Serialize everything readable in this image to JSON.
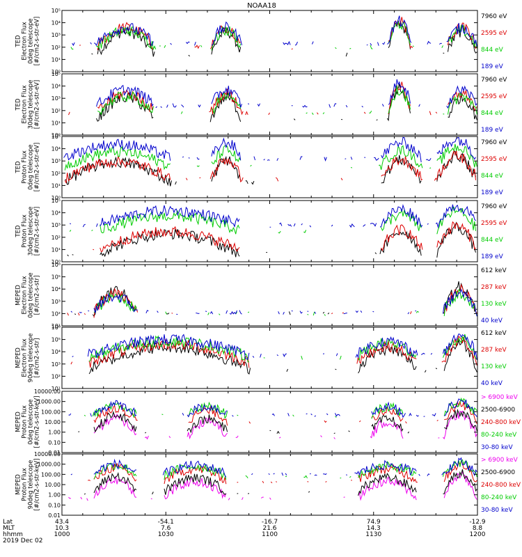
{
  "chart_data": {
    "type": "line",
    "title": "NOAA18",
    "x": {
      "row_labels": [
        "Lat",
        "MLT",
        "hhmm"
      ],
      "ticks": [
        {
          "lat": "43.4",
          "mlt": "10.3",
          "hhmm": "1000"
        },
        {
          "lat": "-54.1",
          "mlt": "7.6",
          "hhmm": "1030"
        },
        {
          "lat": "-16.7",
          "mlt": "21.6",
          "hhmm": "1100"
        },
        {
          "lat": "74.9",
          "mlt": "14.3",
          "hhmm": "1130"
        },
        {
          "lat": "-12.9",
          "mlt": "8.8",
          "hhmm": "1200"
        }
      ],
      "date": "2019 Dec 02",
      "range_minutes": [
        0,
        120
      ]
    },
    "panels": [
      {
        "ylabel": [
          "TED",
          "Electron Flux",
          "0deg telescope",
          "[#/cm2-s-str-eV]"
        ],
        "scale": "log",
        "ylim_exp": [
          0,
          5
        ],
        "ticks": [
          "10⁰",
          "10¹",
          "10²",
          "10³",
          "10⁴",
          "10⁵"
        ],
        "series": [
          {
            "name": "7960 eV",
            "color": "#000000",
            "level": 1.4
          },
          {
            "name": "2595 eV",
            "color": "#dd0000",
            "level": 2.0
          },
          {
            "name": "844 eV",
            "color": "#00cc00",
            "level": 2.0
          },
          {
            "name": "189 eV",
            "color": "#0000cc",
            "level": 2.3
          }
        ],
        "pattern": "ted_e"
      },
      {
        "ylabel": [
          "TED",
          "Electron Flux",
          "30deg telescope",
          "[#/cm2-s-str-eV]"
        ],
        "scale": "log",
        "ylim_exp": [
          0,
          5
        ],
        "ticks": [
          "10⁰",
          "10¹",
          "10²",
          "10³",
          "10⁴",
          "10⁵"
        ],
        "series": [
          {
            "name": "7960 eV",
            "color": "#000000",
            "level": 1.2
          },
          {
            "name": "2595 eV",
            "color": "#dd0000",
            "level": 1.8
          },
          {
            "name": "844 eV",
            "color": "#00cc00",
            "level": 1.8
          },
          {
            "name": "189 eV",
            "color": "#0000cc",
            "level": 2.4
          }
        ],
        "pattern": "ted_e"
      },
      {
        "ylabel": [
          "TED",
          "Proton Flux",
          "0deg telescope",
          "[#/cm2-s-str-eV]"
        ],
        "scale": "log",
        "ylim_exp": [
          0,
          5
        ],
        "ticks": [
          "10⁰",
          "10¹",
          "10²",
          "10³",
          "10⁴",
          "10⁵"
        ],
        "series": [
          {
            "name": "7960 eV",
            "color": "#000000",
            "level": 1.2
          },
          {
            "name": "2595 eV",
            "color": "#dd0000",
            "level": 1.5
          },
          {
            "name": "844 eV",
            "color": "#00cc00",
            "level": 2.5
          },
          {
            "name": "189 eV",
            "color": "#0000cc",
            "level": 3.2
          }
        ],
        "pattern": "ted_p"
      },
      {
        "ylabel": [
          "TED",
          "Proton Flux",
          "30deg telescope",
          "[#/cm2-s-str-eV]"
        ],
        "scale": "log",
        "ylim_exp": [
          0,
          5
        ],
        "ticks": [
          "10⁰",
          "10¹",
          "10²",
          "10³",
          "10⁴",
          "10⁵"
        ],
        "series": [
          {
            "name": "7960 eV",
            "color": "#000000",
            "level": 0.6
          },
          {
            "name": "2595 eV",
            "color": "#dd0000",
            "level": 1.0
          },
          {
            "name": "844 eV",
            "color": "#00cc00",
            "level": 2.5
          },
          {
            "name": "189 eV",
            "color": "#0000cc",
            "level": 3.0
          }
        ],
        "pattern": "ted_p30"
      },
      {
        "ylabel": [
          "MEPED",
          "Electron Flux",
          "0deg telescope",
          "[#/cm2-s-str]"
        ],
        "scale": "log",
        "ylim_exp": [
          1,
          6
        ],
        "ticks": [
          "10¹",
          "10²",
          "10³",
          "10⁴",
          "10⁵",
          "10⁶"
        ],
        "series": [
          {
            "name": "612 keV",
            "color": "#000000",
            "level": 2.0
          },
          {
            "name": "287 keV",
            "color": "#dd0000",
            "level": 2.0
          },
          {
            "name": "130 keV",
            "color": "#00cc00",
            "level": 2.0
          },
          {
            "name": "40 keV",
            "color": "#0000cc",
            "level": 2.1
          }
        ],
        "pattern": "meped_e0"
      },
      {
        "ylabel": [
          "MEPED",
          "Electron Flux",
          "90deg telescope",
          "[#/cm2-s-str]"
        ],
        "scale": "log",
        "ylim_exp": [
          1,
          6
        ],
        "ticks": [
          "10¹",
          "10²",
          "10³",
          "10⁴",
          "10⁵",
          "10⁶"
        ],
        "series": [
          {
            "name": "612 keV",
            "color": "#000000",
            "level": 2.5
          },
          {
            "name": "287 keV",
            "color": "#dd0000",
            "level": 3.0
          },
          {
            "name": "130 keV",
            "color": "#00cc00",
            "level": 3.5
          },
          {
            "name": "40 keV",
            "color": "#0000cc",
            "level": 3.7
          }
        ],
        "pattern": "meped_e90"
      },
      {
        "ylabel": [
          "MEPED",
          "Proton Flux",
          "0deg telescope",
          "[#/cm2-s-str-keV]"
        ],
        "scale": "log",
        "ylim_exp": [
          -2,
          4
        ],
        "ticks": [
          "0.01",
          "0.10",
          "1.00",
          "10.00",
          "100.00",
          "1000.00",
          "10000.00"
        ],
        "series": [
          {
            "name": "> 6900 keV",
            "color": "#ee00ee",
            "level": -0.5
          },
          {
            "name": "2500-6900",
            "color": "#000000",
            "level": 0.0
          },
          {
            "name": "240-800 keV",
            "color": "#dd0000",
            "level": 1.0
          },
          {
            "name": "80-240 keV",
            "color": "#00cc00",
            "level": 1.6
          },
          {
            "name": "30-80 keV",
            "color": "#0000cc",
            "level": 1.7
          }
        ],
        "pattern": "meped_p0"
      },
      {
        "ylabel": [
          "MEPED",
          "Proton Flux",
          "90deg telescope",
          "[#/cm2-s-str-keV]"
        ],
        "scale": "log",
        "ylim_exp": [
          -2,
          4
        ],
        "ticks": [
          "0.01",
          "0.10",
          "1.00",
          "10.00",
          "100.00",
          "1000.00",
          "10000.00"
        ],
        "series": [
          {
            "name": "> 6900 keV",
            "color": "#ee00ee",
            "level": -0.4
          },
          {
            "name": "2500-6900",
            "color": "#000000",
            "level": 0.2
          },
          {
            "name": "240-800 keV",
            "color": "#dd0000",
            "level": 1.3
          },
          {
            "name": "80-240 keV",
            "color": "#00cc00",
            "level": 1.8
          },
          {
            "name": "30-80 keV",
            "color": "#0000cc",
            "level": 2.0
          }
        ],
        "pattern": "meped_p90"
      }
    ]
  }
}
